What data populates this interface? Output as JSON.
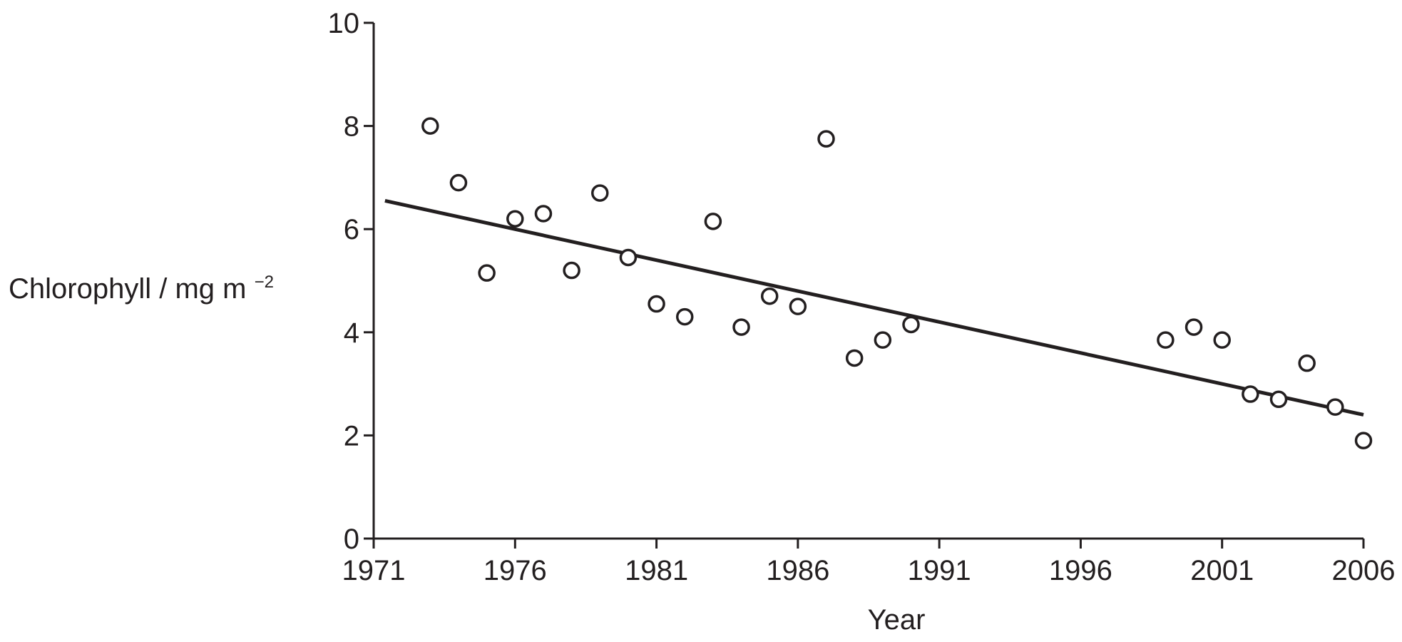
{
  "chart_data": {
    "type": "scatter",
    "xlabel": "Year",
    "ylabel": "Chlorophyll / mg m",
    "ylabel_superscript": "−2",
    "xlim": [
      1971,
      2006
    ],
    "ylim": [
      0,
      10
    ],
    "x_ticks": [
      "1971",
      "1976",
      "1981",
      "1986",
      "1991",
      "1996",
      "2001",
      "2006"
    ],
    "y_ticks": [
      "0",
      "2",
      "4",
      "6",
      "8",
      "10"
    ],
    "grid": false,
    "points": [
      {
        "x": 1973,
        "y": 8.0
      },
      {
        "x": 1974,
        "y": 6.9
      },
      {
        "x": 1975,
        "y": 5.15
      },
      {
        "x": 1976,
        "y": 6.2
      },
      {
        "x": 1977,
        "y": 6.3
      },
      {
        "x": 1978,
        "y": 5.2
      },
      {
        "x": 1979,
        "y": 6.7
      },
      {
        "x": 1980,
        "y": 5.45
      },
      {
        "x": 1981,
        "y": 4.55
      },
      {
        "x": 1982,
        "y": 4.3
      },
      {
        "x": 1983,
        "y": 6.15
      },
      {
        "x": 1984,
        "y": 4.1
      },
      {
        "x": 1985,
        "y": 4.7
      },
      {
        "x": 1986,
        "y": 4.5
      },
      {
        "x": 1987,
        "y": 7.75
      },
      {
        "x": 1988,
        "y": 3.5
      },
      {
        "x": 1989,
        "y": 3.85
      },
      {
        "x": 1990,
        "y": 4.15
      },
      {
        "x": 1999,
        "y": 3.85
      },
      {
        "x": 2000,
        "y": 4.1
      },
      {
        "x": 2001,
        "y": 3.85
      },
      {
        "x": 2002,
        "y": 2.8
      },
      {
        "x": 2003,
        "y": 2.7
      },
      {
        "x": 2004,
        "y": 3.4
      },
      {
        "x": 2005,
        "y": 2.55
      },
      {
        "x": 2006,
        "y": 1.9
      }
    ],
    "trend_line": {
      "x": [
        1971.4,
        2006
      ],
      "y": [
        6.55,
        2.4
      ]
    }
  }
}
